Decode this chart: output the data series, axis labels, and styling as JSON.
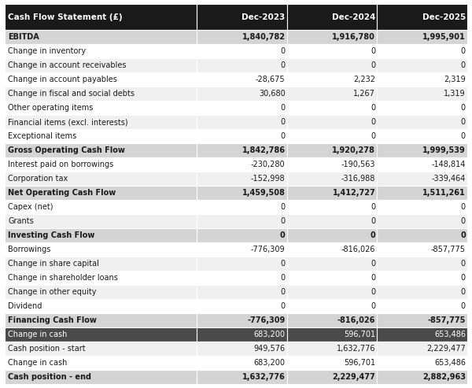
{
  "title_col": "Cash Flow Statement (£)",
  "col_headers": [
    "Dec-2023",
    "Dec-2024",
    "Dec-2025"
  ],
  "rows": [
    {
      "label": "EBITDA",
      "values": [
        "1,840,782",
        "1,916,780",
        "1,995,901"
      ],
      "bold": true,
      "bg": "#d4d4d4"
    },
    {
      "label": "Change in inventory",
      "values": [
        "0",
        "0",
        "0"
      ],
      "bold": false,
      "bg": "#ffffff"
    },
    {
      "label": "Change in account receivables",
      "values": [
        "0",
        "0",
        "0"
      ],
      "bold": false,
      "bg": "#f0f0f0"
    },
    {
      "label": "Change in account payables",
      "values": [
        "-28,675",
        "2,232",
        "2,319"
      ],
      "bold": false,
      "bg": "#ffffff"
    },
    {
      "label": "Change in fiscal and social debts",
      "values": [
        "30,680",
        "1,267",
        "1,319"
      ],
      "bold": false,
      "bg": "#f0f0f0"
    },
    {
      "label": "Other operating items",
      "values": [
        "0",
        "0",
        "0"
      ],
      "bold": false,
      "bg": "#ffffff"
    },
    {
      "label": "Financial items (excl. interests)",
      "values": [
        "0",
        "0",
        "0"
      ],
      "bold": false,
      "bg": "#f0f0f0"
    },
    {
      "label": "Exceptional items",
      "values": [
        "0",
        "0",
        "0"
      ],
      "bold": false,
      "bg": "#ffffff"
    },
    {
      "label": "Gross Operating Cash Flow",
      "values": [
        "1,842,786",
        "1,920,278",
        "1,999,539"
      ],
      "bold": true,
      "bg": "#d4d4d4"
    },
    {
      "label": "Interest paid on borrowings",
      "values": [
        "-230,280",
        "-190,563",
        "-148,814"
      ],
      "bold": false,
      "bg": "#ffffff"
    },
    {
      "label": "Corporation tax",
      "values": [
        "-152,998",
        "-316,988",
        "-339,464"
      ],
      "bold": false,
      "bg": "#f0f0f0"
    },
    {
      "label": "Net Operating Cash Flow",
      "values": [
        "1,459,508",
        "1,412,727",
        "1,511,261"
      ],
      "bold": true,
      "bg": "#d4d4d4"
    },
    {
      "label": "Capex (net)",
      "values": [
        "0",
        "0",
        "0"
      ],
      "bold": false,
      "bg": "#ffffff"
    },
    {
      "label": "Grants",
      "values": [
        "0",
        "0",
        "0"
      ],
      "bold": false,
      "bg": "#f0f0f0"
    },
    {
      "label": "Investing Cash Flow",
      "values": [
        "0",
        "0",
        "0"
      ],
      "bold": true,
      "bg": "#d4d4d4"
    },
    {
      "label": "Borrowings",
      "values": [
        "-776,309",
        "-816,026",
        "-857,775"
      ],
      "bold": false,
      "bg": "#ffffff"
    },
    {
      "label": "Change in share capital",
      "values": [
        "0",
        "0",
        "0"
      ],
      "bold": false,
      "bg": "#f0f0f0"
    },
    {
      "label": "Change in shareholder loans",
      "values": [
        "0",
        "0",
        "0"
      ],
      "bold": false,
      "bg": "#ffffff"
    },
    {
      "label": "Change in other equity",
      "values": [
        "0",
        "0",
        "0"
      ],
      "bold": false,
      "bg": "#f0f0f0"
    },
    {
      "label": "Dividend",
      "values": [
        "0",
        "0",
        "0"
      ],
      "bold": false,
      "bg": "#ffffff"
    },
    {
      "label": "Financing Cash Flow",
      "values": [
        "-776,309",
        "-816,026",
        "-857,775"
      ],
      "bold": true,
      "bg": "#d4d4d4"
    },
    {
      "label": "Change in cash",
      "values": [
        "683,200",
        "596,701",
        "653,486"
      ],
      "bold": false,
      "bg": "#4a4a4a"
    },
    {
      "label": "Cash position - start",
      "values": [
        "949,576",
        "1,632,776",
        "2,229,477"
      ],
      "bold": false,
      "bg": "#f0f0f0"
    },
    {
      "label": "Change in cash",
      "values": [
        "683,200",
        "596,701",
        "653,486"
      ],
      "bold": false,
      "bg": "#ffffff"
    },
    {
      "label": "Cash position - end",
      "values": [
        "1,632,776",
        "2,229,477",
        "2,882,963"
      ],
      "bold": true,
      "bg": "#d4d4d4"
    }
  ],
  "header_bg": "#1a1a1a",
  "header_text": "#ffffff",
  "fig_width": 6.0,
  "fig_height": 4.93,
  "dpi": 100
}
